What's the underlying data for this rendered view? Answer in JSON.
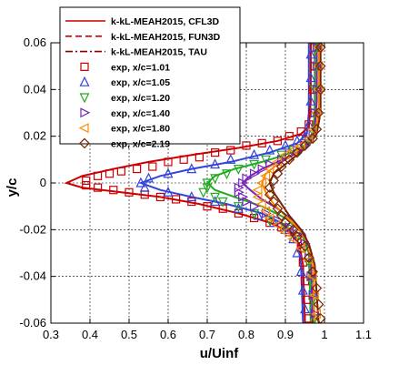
{
  "chart_data": {
    "type": "line",
    "title": "",
    "xlabel": "u/Uinf",
    "ylabel": "y/c",
    "xlim": [
      0.3,
      1.1
    ],
    "ylim": [
      -0.06,
      0.06
    ],
    "x_ticks": [
      "0.3",
      "0.4",
      "0.5",
      "0.6",
      "0.7",
      "0.8",
      "0.9",
      "1",
      "1.1"
    ],
    "y_ticks": [
      "-0.06",
      "-0.04",
      "-0.02",
      "0",
      "0.02",
      "0.04",
      "0.06"
    ],
    "grid": true,
    "legend_position": "top-left",
    "series": [
      {
        "name": "k-kL-MEAH2015, CFL3D",
        "style": "solid",
        "color": "#cc0000",
        "marker": "none",
        "points": [
          [
            0.34,
            0.0
          ],
          [
            0.38,
            0.003
          ],
          [
            0.46,
            0.006
          ],
          [
            0.55,
            0.009
          ],
          [
            0.66,
            0.012
          ],
          [
            0.78,
            0.015
          ],
          [
            0.88,
            0.018
          ],
          [
            0.94,
            0.021
          ],
          [
            0.96,
            0.024
          ],
          [
            0.965,
            0.035
          ],
          [
            0.965,
            0.06
          ],
          [
            0.38,
            -0.002
          ],
          [
            0.48,
            -0.004
          ],
          [
            0.58,
            -0.006
          ],
          [
            0.68,
            -0.009
          ],
          [
            0.78,
            -0.013
          ],
          [
            0.86,
            -0.017
          ],
          [
            0.91,
            -0.021
          ],
          [
            0.935,
            -0.026
          ],
          [
            0.945,
            -0.035
          ],
          [
            0.95,
            -0.06
          ]
        ]
      },
      {
        "name": "k-kL-MEAH2015, FUN3D",
        "style": "dashed",
        "color": "#cc0000",
        "marker": "none",
        "points": []
      },
      {
        "name": "k-kL-MEAH2015, TAU",
        "style": "dashdot",
        "color": "#880000",
        "marker": "none",
        "points": []
      },
      {
        "name": "exp, x/c=1.01",
        "style": "marker",
        "color": "#cc0000",
        "marker": "square",
        "points": [
          [
            0.39,
            0.001
          ],
          [
            0.42,
            0.003
          ],
          [
            0.45,
            0.004
          ],
          [
            0.48,
            0.005
          ],
          [
            0.52,
            0.006
          ],
          [
            0.56,
            0.007
          ],
          [
            0.6,
            0.009
          ],
          [
            0.64,
            0.01
          ],
          [
            0.68,
            0.011
          ],
          [
            0.72,
            0.013
          ],
          [
            0.76,
            0.014
          ],
          [
            0.8,
            0.016
          ],
          [
            0.84,
            0.017
          ],
          [
            0.88,
            0.018
          ],
          [
            0.91,
            0.02
          ],
          [
            0.94,
            0.022
          ],
          [
            0.96,
            0.025
          ],
          [
            0.97,
            0.03
          ],
          [
            0.97,
            0.04
          ],
          [
            0.975,
            0.05
          ],
          [
            0.975,
            0.058
          ],
          [
            0.39,
            -0.001
          ],
          [
            0.42,
            -0.002
          ],
          [
            0.46,
            -0.003
          ],
          [
            0.5,
            -0.004
          ],
          [
            0.54,
            -0.005
          ],
          [
            0.58,
            -0.006
          ],
          [
            0.62,
            -0.007
          ],
          [
            0.66,
            -0.008
          ],
          [
            0.7,
            -0.01
          ],
          [
            0.74,
            -0.011
          ],
          [
            0.78,
            -0.013
          ],
          [
            0.82,
            -0.015
          ],
          [
            0.86,
            -0.017
          ],
          [
            0.89,
            -0.019
          ],
          [
            0.91,
            -0.021
          ],
          [
            0.93,
            -0.024
          ],
          [
            0.94,
            -0.028
          ],
          [
            0.945,
            -0.034
          ],
          [
            0.95,
            -0.042
          ],
          [
            0.955,
            -0.05
          ],
          [
            0.96,
            -0.058
          ]
        ]
      },
      {
        "name": "exp, x/c=1.05",
        "style": "marker",
        "color": "#3344dd",
        "marker": "triangle-up",
        "points": [
          [
            0.53,
            0.0
          ],
          [
            0.55,
            0.002
          ],
          [
            0.6,
            0.004
          ],
          [
            0.66,
            0.006
          ],
          [
            0.72,
            0.008
          ],
          [
            0.76,
            0.01
          ],
          [
            0.82,
            0.012
          ],
          [
            0.86,
            0.014
          ],
          [
            0.9,
            0.016
          ],
          [
            0.93,
            0.018
          ],
          [
            0.95,
            0.02
          ],
          [
            0.96,
            0.025
          ],
          [
            0.965,
            0.035
          ],
          [
            0.965,
            0.045
          ],
          [
            0.965,
            0.055
          ],
          [
            0.54,
            -0.002
          ],
          [
            0.6,
            -0.004
          ],
          [
            0.66,
            -0.006
          ],
          [
            0.72,
            -0.008
          ],
          [
            0.78,
            -0.011
          ],
          [
            0.83,
            -0.014
          ],
          [
            0.87,
            -0.017
          ],
          [
            0.9,
            -0.02
          ],
          [
            0.92,
            -0.024
          ],
          [
            0.93,
            -0.03
          ],
          [
            0.94,
            -0.038
          ],
          [
            0.945,
            -0.046
          ],
          [
            0.95,
            -0.054
          ]
        ]
      },
      {
        "name": "exp, x/c=1.20",
        "style": "marker",
        "color": "#22aa22",
        "marker": "triangle-down",
        "points": [
          [
            0.69,
            -0.004
          ],
          [
            0.7,
            -0.002
          ],
          [
            0.7,
            0.0
          ],
          [
            0.72,
            0.002
          ],
          [
            0.75,
            0.004
          ],
          [
            0.78,
            0.006
          ],
          [
            0.82,
            0.008
          ],
          [
            0.85,
            0.01
          ],
          [
            0.89,
            0.012
          ],
          [
            0.92,
            0.014
          ],
          [
            0.95,
            0.016
          ],
          [
            0.96,
            0.018
          ],
          [
            0.97,
            0.022
          ],
          [
            0.975,
            0.03
          ],
          [
            0.975,
            0.04
          ],
          [
            0.98,
            0.05
          ],
          [
            0.98,
            0.058
          ],
          [
            0.72,
            -0.006
          ],
          [
            0.74,
            -0.008
          ],
          [
            0.78,
            -0.01
          ],
          [
            0.82,
            -0.013
          ],
          [
            0.86,
            -0.016
          ],
          [
            0.9,
            -0.019
          ],
          [
            0.93,
            -0.023
          ],
          [
            0.95,
            -0.028
          ],
          [
            0.96,
            -0.034
          ],
          [
            0.965,
            -0.042
          ],
          [
            0.97,
            -0.05
          ],
          [
            0.975,
            -0.058
          ]
        ]
      },
      {
        "name": "exp, x/c=1.40",
        "style": "marker",
        "color": "#7722bb",
        "marker": "triangle-right",
        "points": [
          [
            0.78,
            -0.004
          ],
          [
            0.78,
            -0.002
          ],
          [
            0.79,
            0.0
          ],
          [
            0.8,
            0.002
          ],
          [
            0.82,
            0.004
          ],
          [
            0.84,
            0.006
          ],
          [
            0.86,
            0.008
          ],
          [
            0.89,
            0.01
          ],
          [
            0.91,
            0.012
          ],
          [
            0.93,
            0.014
          ],
          [
            0.95,
            0.016
          ],
          [
            0.96,
            0.018
          ],
          [
            0.97,
            0.022
          ],
          [
            0.975,
            0.03
          ],
          [
            0.98,
            0.04
          ],
          [
            0.98,
            0.05
          ],
          [
            0.98,
            0.058
          ],
          [
            0.79,
            -0.006
          ],
          [
            0.8,
            -0.008
          ],
          [
            0.82,
            -0.01
          ],
          [
            0.85,
            -0.013
          ],
          [
            0.88,
            -0.016
          ],
          [
            0.91,
            -0.019
          ],
          [
            0.93,
            -0.022
          ],
          [
            0.95,
            -0.026
          ],
          [
            0.96,
            -0.032
          ],
          [
            0.965,
            -0.04
          ],
          [
            0.97,
            -0.048
          ],
          [
            0.975,
            -0.056
          ]
        ]
      },
      {
        "name": "exp, x/c=1.80",
        "style": "marker",
        "color": "#ff8800",
        "marker": "triangle-left",
        "points": [
          [
            0.83,
            -0.006
          ],
          [
            0.83,
            -0.003
          ],
          [
            0.84,
            0.0
          ],
          [
            0.85,
            0.003
          ],
          [
            0.86,
            0.006
          ],
          [
            0.88,
            0.009
          ],
          [
            0.9,
            0.012
          ],
          [
            0.92,
            0.014
          ],
          [
            0.94,
            0.016
          ],
          [
            0.96,
            0.019
          ],
          [
            0.97,
            0.023
          ],
          [
            0.98,
            0.03
          ],
          [
            0.985,
            0.04
          ],
          [
            0.985,
            0.05
          ],
          [
            0.985,
            0.058
          ],
          [
            0.84,
            -0.009
          ],
          [
            0.85,
            -0.012
          ],
          [
            0.86,
            -0.015
          ],
          [
            0.88,
            -0.018
          ],
          [
            0.9,
            -0.021
          ],
          [
            0.92,
            -0.024
          ],
          [
            0.94,
            -0.028
          ],
          [
            0.96,
            -0.033
          ],
          [
            0.97,
            -0.04
          ],
          [
            0.975,
            -0.048
          ],
          [
            0.98,
            -0.056
          ]
        ]
      },
      {
        "name": "exp, x/c=2.19",
        "style": "marker",
        "color": "#772200",
        "marker": "diamond",
        "points": [
          [
            0.86,
            -0.005
          ],
          [
            0.86,
            -0.002
          ],
          [
            0.87,
            0.001
          ],
          [
            0.88,
            0.004
          ],
          [
            0.89,
            0.007
          ],
          [
            0.91,
            0.01
          ],
          [
            0.93,
            0.013
          ],
          [
            0.95,
            0.016
          ],
          [
            0.97,
            0.019
          ],
          [
            0.98,
            0.023
          ],
          [
            0.985,
            0.03
          ],
          [
            0.99,
            0.04
          ],
          [
            0.99,
            0.05
          ],
          [
            0.99,
            0.058
          ],
          [
            0.87,
            -0.008
          ],
          [
            0.88,
            -0.011
          ],
          [
            0.89,
            -0.014
          ],
          [
            0.9,
            -0.017
          ],
          [
            0.92,
            -0.02
          ],
          [
            0.93,
            -0.023
          ],
          [
            0.95,
            -0.027
          ],
          [
            0.96,
            -0.032
          ],
          [
            0.97,
            -0.038
          ],
          [
            0.98,
            -0.045
          ],
          [
            0.985,
            -0.052
          ],
          [
            0.99,
            -0.058
          ]
        ]
      }
    ],
    "model_curves": [
      {
        "color": "#3344dd",
        "points": [
          [
            0.53,
            0.0
          ],
          [
            0.58,
            0.003
          ],
          [
            0.66,
            0.006
          ],
          [
            0.76,
            0.009
          ],
          [
            0.86,
            0.013
          ],
          [
            0.93,
            0.017
          ],
          [
            0.955,
            0.021
          ],
          [
            0.96,
            0.03
          ],
          [
            0.96,
            0.06
          ],
          [
            0.58,
            -0.003
          ],
          [
            0.66,
            -0.006
          ],
          [
            0.75,
            -0.009
          ],
          [
            0.84,
            -0.013
          ],
          [
            0.9,
            -0.018
          ],
          [
            0.93,
            -0.024
          ],
          [
            0.94,
            -0.035
          ],
          [
            0.945,
            -0.06
          ]
        ]
      },
      {
        "color": "#22aa22",
        "points": [
          [
            0.7,
            0.0
          ],
          [
            0.72,
            0.003
          ],
          [
            0.77,
            0.006
          ],
          [
            0.84,
            0.009
          ],
          [
            0.9,
            0.012
          ],
          [
            0.95,
            0.016
          ],
          [
            0.97,
            0.02
          ],
          [
            0.975,
            0.03
          ],
          [
            0.975,
            0.06
          ],
          [
            0.72,
            -0.003
          ],
          [
            0.77,
            -0.006
          ],
          [
            0.84,
            -0.01
          ],
          [
            0.9,
            -0.015
          ],
          [
            0.94,
            -0.021
          ],
          [
            0.96,
            -0.03
          ],
          [
            0.965,
            -0.06
          ]
        ]
      },
      {
        "color": "#7722bb",
        "points": [
          [
            0.79,
            0.0
          ],
          [
            0.81,
            0.003
          ],
          [
            0.84,
            0.006
          ],
          [
            0.88,
            0.009
          ],
          [
            0.93,
            0.013
          ],
          [
            0.96,
            0.017
          ],
          [
            0.975,
            0.022
          ],
          [
            0.98,
            0.035
          ],
          [
            0.98,
            0.06
          ],
          [
            0.81,
            -0.003
          ],
          [
            0.84,
            -0.007
          ],
          [
            0.88,
            -0.011
          ],
          [
            0.92,
            -0.016
          ],
          [
            0.95,
            -0.022
          ],
          [
            0.965,
            -0.032
          ],
          [
            0.97,
            -0.06
          ]
        ]
      },
      {
        "color": "#ff8800",
        "points": [
          [
            0.84,
            0.0
          ],
          [
            0.85,
            0.004
          ],
          [
            0.88,
            0.008
          ],
          [
            0.92,
            0.012
          ],
          [
            0.95,
            0.016
          ],
          [
            0.975,
            0.021
          ],
          [
            0.985,
            0.03
          ],
          [
            0.985,
            0.06
          ],
          [
            0.85,
            -0.004
          ],
          [
            0.87,
            -0.009
          ],
          [
            0.9,
            -0.014
          ],
          [
            0.93,
            -0.019
          ],
          [
            0.955,
            -0.025
          ],
          [
            0.97,
            -0.035
          ],
          [
            0.975,
            -0.06
          ]
        ]
      },
      {
        "color": "#772200",
        "points": [
          [
            0.86,
            0.0
          ],
          [
            0.87,
            0.004
          ],
          [
            0.9,
            0.008
          ],
          [
            0.93,
            0.012
          ],
          [
            0.96,
            0.016
          ],
          [
            0.98,
            0.021
          ],
          [
            0.99,
            0.03
          ],
          [
            0.99,
            0.06
          ],
          [
            0.87,
            -0.004
          ],
          [
            0.89,
            -0.009
          ],
          [
            0.91,
            -0.014
          ],
          [
            0.94,
            -0.02
          ],
          [
            0.96,
            -0.026
          ],
          [
            0.975,
            -0.035
          ],
          [
            0.985,
            -0.06
          ]
        ]
      }
    ]
  }
}
